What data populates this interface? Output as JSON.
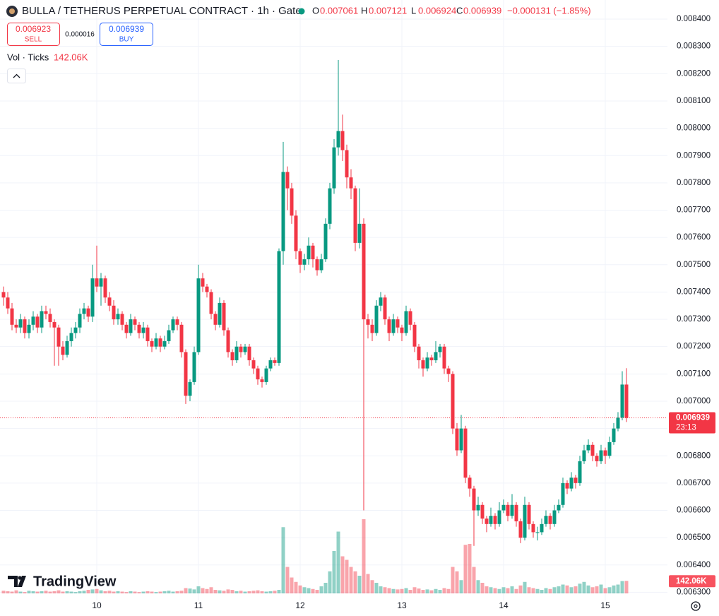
{
  "chart_data": {
    "type": "candlestick",
    "title": "BULLA / TETHERUS PERPETUAL CONTRACT · 1h · Gate",
    "ohlc_labels": [
      "O",
      "H",
      "L",
      "C"
    ],
    "change": "−0.000131 (−1.85%)",
    "sell": {
      "price": 0.006923,
      "label": "SELL"
    },
    "spread": 1.6e-05,
    "buy": {
      "price": 0.006939,
      "label": "BUY"
    },
    "volume_indicator": "Vol · Ticks",
    "volume_value": "142.06K",
    "countdown": "23:13",
    "logo": "TradingView",
    "up_color": "#089981",
    "down_color": "#f23645",
    "grid": true,
    "categories": [
      null,
      null,
      null,
      null,
      null,
      null,
      null,
      null,
      null,
      null,
      null,
      null,
      null,
      null,
      null,
      null,
      null,
      null,
      null,
      null,
      null,
      null,
      "10",
      null,
      null,
      null,
      null,
      null,
      null,
      null,
      null,
      null,
      null,
      null,
      null,
      null,
      null,
      null,
      null,
      null,
      null,
      null,
      null,
      null,
      null,
      null,
      "11",
      null,
      null,
      null,
      null,
      null,
      null,
      null,
      null,
      null,
      null,
      null,
      null,
      null,
      null,
      null,
      null,
      null,
      null,
      null,
      null,
      null,
      null,
      null,
      "12",
      null,
      null,
      null,
      null,
      null,
      null,
      null,
      null,
      null,
      null,
      null,
      null,
      null,
      null,
      null,
      null,
      null,
      null,
      null,
      null,
      null,
      null,
      null,
      "13",
      null,
      null,
      null,
      null,
      null,
      null,
      null,
      null,
      null,
      null,
      null,
      null,
      null,
      null,
      null,
      null,
      null,
      null,
      null,
      null,
      null,
      null,
      null,
      "14",
      null,
      null,
      null,
      null,
      null,
      null,
      null,
      null,
      null,
      null,
      null,
      null,
      null,
      null,
      null,
      null,
      null,
      null,
      null,
      null,
      null,
      null,
      null,
      "15",
      null,
      null,
      null,
      null,
      null
    ],
    "open": [
      0.0074,
      0.00738,
      0.00734,
      0.00728,
      0.00727,
      0.0073,
      0.00725,
      0.00728,
      0.00731,
      0.00727,
      0.00733,
      0.00732,
      0.00729,
      0.00727,
      0.0072,
      0.00717,
      0.00722,
      0.00725,
      0.00727,
      0.00732,
      0.00734,
      0.00731,
      0.00745,
      0.00742,
      0.00745,
      0.00738,
      0.00735,
      0.0073,
      0.00732,
      0.00728,
      0.00725,
      0.0073,
      0.00728,
      0.00725,
      0.00727,
      0.00722,
      0.0072,
      0.00723,
      0.0072,
      0.00722,
      0.00726,
      0.0073,
      0.00728,
      0.00718,
      0.00702,
      0.00707,
      0.00718,
      0.00745,
      0.00742,
      0.0074,
      0.00732,
      0.00728,
      0.00736,
      0.00726,
      0.00718,
      0.00715,
      0.0072,
      0.00718,
      0.0072,
      0.00715,
      0.00712,
      0.00708,
      0.00707,
      0.00712,
      0.00715,
      0.00714,
      0.00755,
      0.00784,
      0.00778,
      0.00768,
      0.00755,
      0.0075,
      0.00752,
      0.00757,
      0.00752,
      0.00748,
      0.00752,
      0.00765,
      0.00778,
      0.00793,
      0.00799,
      0.00792,
      0.00782,
      0.00778,
      0.00758,
      0.00765,
      0.0073,
      0.00728,
      0.00725,
      0.00735,
      0.00738,
      0.0073,
      0.00725,
      0.0073,
      0.00727,
      0.00725,
      0.00733,
      0.00728,
      0.0072,
      0.00715,
      0.00712,
      0.00716,
      0.00715,
      0.00718,
      0.0072,
      0.00712,
      0.0071,
      0.0069,
      0.00682,
      0.0069,
      0.00672,
      0.00668,
      0.0066,
      0.00662,
      0.00657,
      0.00655,
      0.00658,
      0.00655,
      0.0066,
      0.00662,
      0.00658,
      0.00662,
      0.00656,
      0.0065,
      0.00662,
      0.00655,
      0.00652,
      0.00652,
      0.00655,
      0.00658,
      0.00655,
      0.0066,
      0.00662,
      0.0067,
      0.00668,
      0.00672,
      0.0067,
      0.00678,
      0.00682,
      0.00684,
      0.0068,
      0.00678,
      0.00682,
      0.0068,
      0.00685,
      0.0069,
      0.00694,
      0.007061
    ],
    "high": [
      0.00742,
      0.0074,
      0.00736,
      0.0073,
      0.00732,
      0.00731,
      0.0073,
      0.00733,
      0.00732,
      0.00735,
      0.00735,
      0.00734,
      0.0073,
      0.00728,
      0.00722,
      0.00724,
      0.00727,
      0.00729,
      0.00734,
      0.00736,
      0.00735,
      0.0075,
      0.00757,
      0.00747,
      0.00746,
      0.0074,
      0.00737,
      0.00734,
      0.00733,
      0.00729,
      0.00732,
      0.00731,
      0.00729,
      0.00729,
      0.00728,
      0.00723,
      0.00725,
      0.00724,
      0.00724,
      0.00728,
      0.00731,
      0.00731,
      0.00729,
      0.00719,
      0.00708,
      0.0072,
      0.0075,
      0.00747,
      0.00743,
      0.00741,
      0.00733,
      0.00738,
      0.00737,
      0.00727,
      0.00719,
      0.00722,
      0.00721,
      0.00721,
      0.00721,
      0.00716,
      0.00713,
      0.00709,
      0.00713,
      0.00716,
      0.00716,
      0.00756,
      0.00795,
      0.00786,
      0.0078,
      0.0077,
      0.00756,
      0.00754,
      0.0076,
      0.00758,
      0.00753,
      0.00754,
      0.00767,
      0.0078,
      0.00796,
      0.00825,
      0.00805,
      0.00794,
      0.00785,
      0.00779,
      0.00778,
      0.00767,
      0.00732,
      0.0073,
      0.00737,
      0.0074,
      0.00739,
      0.00731,
      0.00732,
      0.00731,
      0.00728,
      0.00735,
      0.00734,
      0.00729,
      0.00721,
      0.00716,
      0.00718,
      0.00717,
      0.00722,
      0.00721,
      0.00721,
      0.00713,
      0.00711,
      0.00692,
      0.00695,
      0.00691,
      0.00673,
      0.00669,
      0.00665,
      0.00663,
      0.00658,
      0.00661,
      0.00659,
      0.00663,
      0.00664,
      0.00663,
      0.00666,
      0.00663,
      0.00657,
      0.00665,
      0.00663,
      0.00656,
      0.00654,
      0.00657,
      0.0066,
      0.00659,
      0.00662,
      0.00664,
      0.00672,
      0.00671,
      0.00674,
      0.00673,
      0.0068,
      0.00684,
      0.00686,
      0.00685,
      0.00681,
      0.00684,
      0.00683,
      0.00687,
      0.00692,
      0.00696,
      0.00711,
      0.007121
    ],
    "low": [
      0.00735,
      0.00732,
      0.00726,
      0.00725,
      0.00725,
      0.00723,
      0.00723,
      0.00726,
      0.00725,
      0.00725,
      0.0073,
      0.00727,
      0.00713,
      0.00713,
      0.00715,
      0.00716,
      0.0072,
      0.00723,
      0.00725,
      0.0073,
      0.00729,
      0.00729,
      0.0074,
      0.00735,
      0.00736,
      0.00733,
      0.00728,
      0.00728,
      0.00726,
      0.00723,
      0.00724,
      0.00726,
      0.00723,
      0.00723,
      0.0072,
      0.00718,
      0.00719,
      0.00718,
      0.00719,
      0.00721,
      0.00725,
      0.00726,
      0.00716,
      0.00699,
      0.007,
      0.00706,
      0.00717,
      0.0074,
      0.00738,
      0.0073,
      0.00726,
      0.00727,
      0.00724,
      0.00716,
      0.00713,
      0.00714,
      0.00716,
      0.00717,
      0.00713,
      0.0071,
      0.00706,
      0.00705,
      0.00706,
      0.00711,
      0.00713,
      0.00713,
      0.0075,
      0.0077,
      0.00765,
      0.00752,
      0.00747,
      0.00748,
      0.0075,
      0.00749,
      0.00746,
      0.00747,
      0.00751,
      0.00763,
      0.00776,
      0.0079,
      0.00788,
      0.00778,
      0.00774,
      0.00755,
      0.00756,
      0.0066,
      0.00723,
      0.00722,
      0.00724,
      0.00733,
      0.00728,
      0.00722,
      0.00724,
      0.00725,
      0.00722,
      0.00724,
      0.00726,
      0.00718,
      0.00712,
      0.00709,
      0.00711,
      0.00713,
      0.00714,
      0.00716,
      0.0071,
      0.00707,
      0.00688,
      0.0068,
      0.00681,
      0.0067,
      0.00665,
      0.00647,
      0.00658,
      0.00655,
      0.00652,
      0.00654,
      0.00653,
      0.00654,
      0.00659,
      0.00656,
      0.00657,
      0.00654,
      0.00648,
      0.00649,
      0.00653,
      0.0065,
      0.00649,
      0.00651,
      0.00654,
      0.00653,
      0.00654,
      0.00659,
      0.00661,
      0.00666,
      0.00667,
      0.00668,
      0.00669,
      0.00677,
      0.00681,
      0.00678,
      0.00676,
      0.00677,
      0.00677,
      0.00679,
      0.00684,
      0.00689,
      0.00693,
      0.006924
    ],
    "close": [
      0.00738,
      0.00734,
      0.00728,
      0.00727,
      0.0073,
      0.00725,
      0.00728,
      0.00731,
      0.00727,
      0.00733,
      0.00732,
      0.00729,
      0.00727,
      0.0072,
      0.00717,
      0.00722,
      0.00725,
      0.00727,
      0.00732,
      0.00734,
      0.00731,
      0.00745,
      0.00742,
      0.00745,
      0.00738,
      0.00735,
      0.0073,
      0.00732,
      0.00728,
      0.00725,
      0.0073,
      0.00728,
      0.00725,
      0.00727,
      0.00722,
      0.0072,
      0.00723,
      0.0072,
      0.00722,
      0.00726,
      0.0073,
      0.00728,
      0.00718,
      0.00702,
      0.00707,
      0.00718,
      0.00745,
      0.00742,
      0.0074,
      0.00732,
      0.00728,
      0.00736,
      0.00726,
      0.00718,
      0.00715,
      0.0072,
      0.00718,
      0.0072,
      0.00715,
      0.00712,
      0.00708,
      0.00707,
      0.00712,
      0.00715,
      0.00714,
      0.00755,
      0.00784,
      0.00778,
      0.00768,
      0.00755,
      0.0075,
      0.00752,
      0.00757,
      0.00752,
      0.00748,
      0.00752,
      0.00765,
      0.00778,
      0.00793,
      0.00799,
      0.00792,
      0.00782,
      0.00778,
      0.00758,
      0.00765,
      0.0073,
      0.00728,
      0.00725,
      0.00735,
      0.00738,
      0.0073,
      0.00725,
      0.0073,
      0.00727,
      0.00725,
      0.00733,
      0.00728,
      0.0072,
      0.00715,
      0.00712,
      0.00716,
      0.00715,
      0.00718,
      0.0072,
      0.00712,
      0.0071,
      0.0069,
      0.00682,
      0.0069,
      0.00672,
      0.00668,
      0.0066,
      0.00662,
      0.00657,
      0.00655,
      0.00658,
      0.00655,
      0.0066,
      0.00662,
      0.00658,
      0.00662,
      0.00656,
      0.0065,
      0.00662,
      0.00655,
      0.00652,
      0.00652,
      0.00655,
      0.00658,
      0.00655,
      0.0066,
      0.00662,
      0.0067,
      0.00668,
      0.00672,
      0.0067,
      0.00678,
      0.00682,
      0.00684,
      0.0068,
      0.00678,
      0.00682,
      0.0068,
      0.00685,
      0.0069,
      0.00694,
      0.007061,
      0.006939
    ],
    "volume": [
      30000,
      25000,
      20000,
      35000,
      20000,
      15000,
      30000,
      25000,
      20000,
      25000,
      30000,
      20000,
      25000,
      35000,
      20000,
      25000,
      20000,
      15000,
      25000,
      30000,
      40000,
      45000,
      50000,
      35000,
      25000,
      30000,
      20000,
      25000,
      20000,
      15000,
      25000,
      20000,
      15000,
      20000,
      25000,
      20000,
      15000,
      20000,
      25000,
      30000,
      20000,
      25000,
      30000,
      60000,
      55000,
      45000,
      80000,
      60000,
      50000,
      70000,
      40000,
      35000,
      30000,
      45000,
      40000,
      25000,
      30000,
      20000,
      25000,
      30000,
      35000,
      25000,
      20000,
      25000,
      30000,
      40000,
      750000,
      300000,
      180000,
      130000,
      90000,
      70000,
      60000,
      50000,
      40000,
      80000,
      120000,
      250000,
      480000,
      700000,
      420000,
      380000,
      300000,
      250000,
      200000,
      840000,
      220000,
      150000,
      120000,
      80000,
      70000,
      60000,
      50000,
      45000,
      50000,
      60000,
      40000,
      70000,
      55000,
      40000,
      45000,
      35000,
      50000,
      40000,
      60000,
      50000,
      300000,
      250000,
      150000,
      550000,
      560000,
      300000,
      150000,
      120000,
      80000,
      70000,
      60000,
      50000,
      70000,
      60000,
      80000,
      50000,
      90000,
      130000,
      70000,
      60000,
      50000,
      40000,
      60000,
      50000,
      70000,
      80000,
      100000,
      90000,
      70000,
      80000,
      110000,
      130000,
      90000,
      70000,
      80000,
      100000,
      60000,
      70000,
      90000,
      100000,
      140000,
      142060
    ],
    "ylim": [
      0.00627,
      0.00847
    ],
    "yticks": [
      {
        "value": 0.0063,
        "label": "0.006300"
      },
      {
        "value": 0.0064,
        "label": "0.006400"
      },
      {
        "value": 0.0065,
        "label": "0.006500"
      },
      {
        "value": 0.0066,
        "label": "0.006600"
      },
      {
        "value": 0.0067,
        "label": "0.006700"
      },
      {
        "value": 0.0068,
        "label": "0.006800"
      },
      {
        "value": 0.0069,
        "label": "0.006900"
      },
      {
        "value": 0.007,
        "label": "0.007000"
      },
      {
        "value": 0.0071,
        "label": "0.007100"
      },
      {
        "value": 0.0072,
        "label": "0.007200"
      },
      {
        "value": 0.0073,
        "label": "0.007300"
      },
      {
        "value": 0.0074,
        "label": "0.007400"
      },
      {
        "value": 0.0075,
        "label": "0.007500"
      },
      {
        "value": 0.0076,
        "label": "0.007600"
      },
      {
        "value": 0.0077,
        "label": "0.007700"
      },
      {
        "value": 0.0078,
        "label": "0.007800"
      },
      {
        "value": 0.0079,
        "label": "0.007900"
      },
      {
        "value": 0.008,
        "label": "0.008000"
      },
      {
        "value": 0.0081,
        "label": "0.008100"
      },
      {
        "value": 0.0082,
        "label": "0.008200"
      },
      {
        "value": 0.0083,
        "label": "0.008300"
      },
      {
        "value": 0.0084,
        "label": "0.008400"
      }
    ]
  }
}
